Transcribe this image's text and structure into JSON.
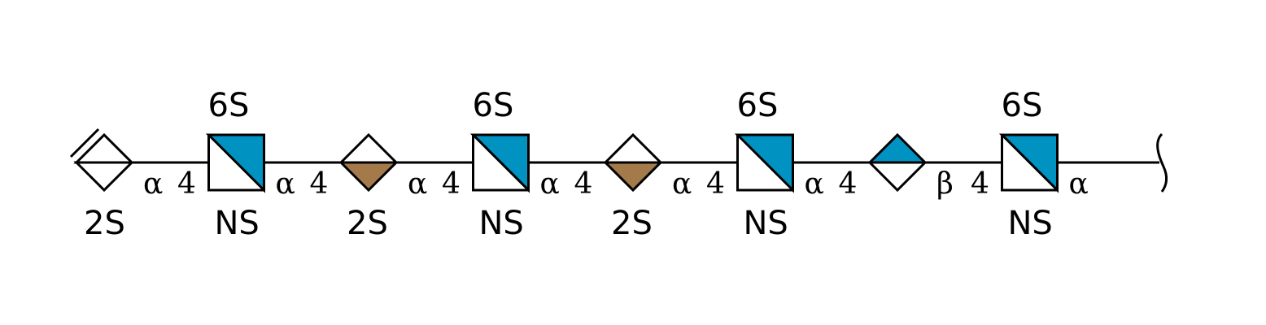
{
  "colors": {
    "glcnac": "#0092c0",
    "idoa": "#a47a4b",
    "glca": "#0092c0",
    "line": "#000000",
    "background": "#ffffff"
  },
  "residues": [
    {
      "type": "idoa-unsaturated",
      "icon": "diamond-empty-with-double-bond",
      "mod_bottom": "2S",
      "mod_top": ""
    },
    {
      "type": "glcnac",
      "icon": "square-half-filled",
      "mod_top": "6S",
      "mod_bottom": "NS"
    },
    {
      "type": "idoa",
      "icon": "diamond-bottom-filled",
      "mod_top": "",
      "mod_bottom": "2S"
    },
    {
      "type": "glcnac",
      "icon": "square-half-filled",
      "mod_top": "6S",
      "mod_bottom": "NS"
    },
    {
      "type": "idoa",
      "icon": "diamond-bottom-filled",
      "mod_top": "",
      "mod_bottom": "2S"
    },
    {
      "type": "glcnac",
      "icon": "square-half-filled",
      "mod_top": "6S",
      "mod_bottom": "NS"
    },
    {
      "type": "glca",
      "icon": "diamond-top-filled",
      "mod_top": "",
      "mod_bottom": ""
    },
    {
      "type": "glcnac",
      "icon": "square-half-filled",
      "mod_top": "6S",
      "mod_bottom": "NS"
    }
  ],
  "linkages": [
    {
      "anomer": "α",
      "position": "4"
    },
    {
      "anomer": "α",
      "position": "4"
    },
    {
      "anomer": "α",
      "position": "4"
    },
    {
      "anomer": "α",
      "position": "4"
    },
    {
      "anomer": "α",
      "position": "4"
    },
    {
      "anomer": "α",
      "position": "4"
    },
    {
      "anomer": "β",
      "position": "4"
    }
  ],
  "reducing_end": {
    "anomer": "α",
    "icon": "wavy-bracket-icon"
  }
}
